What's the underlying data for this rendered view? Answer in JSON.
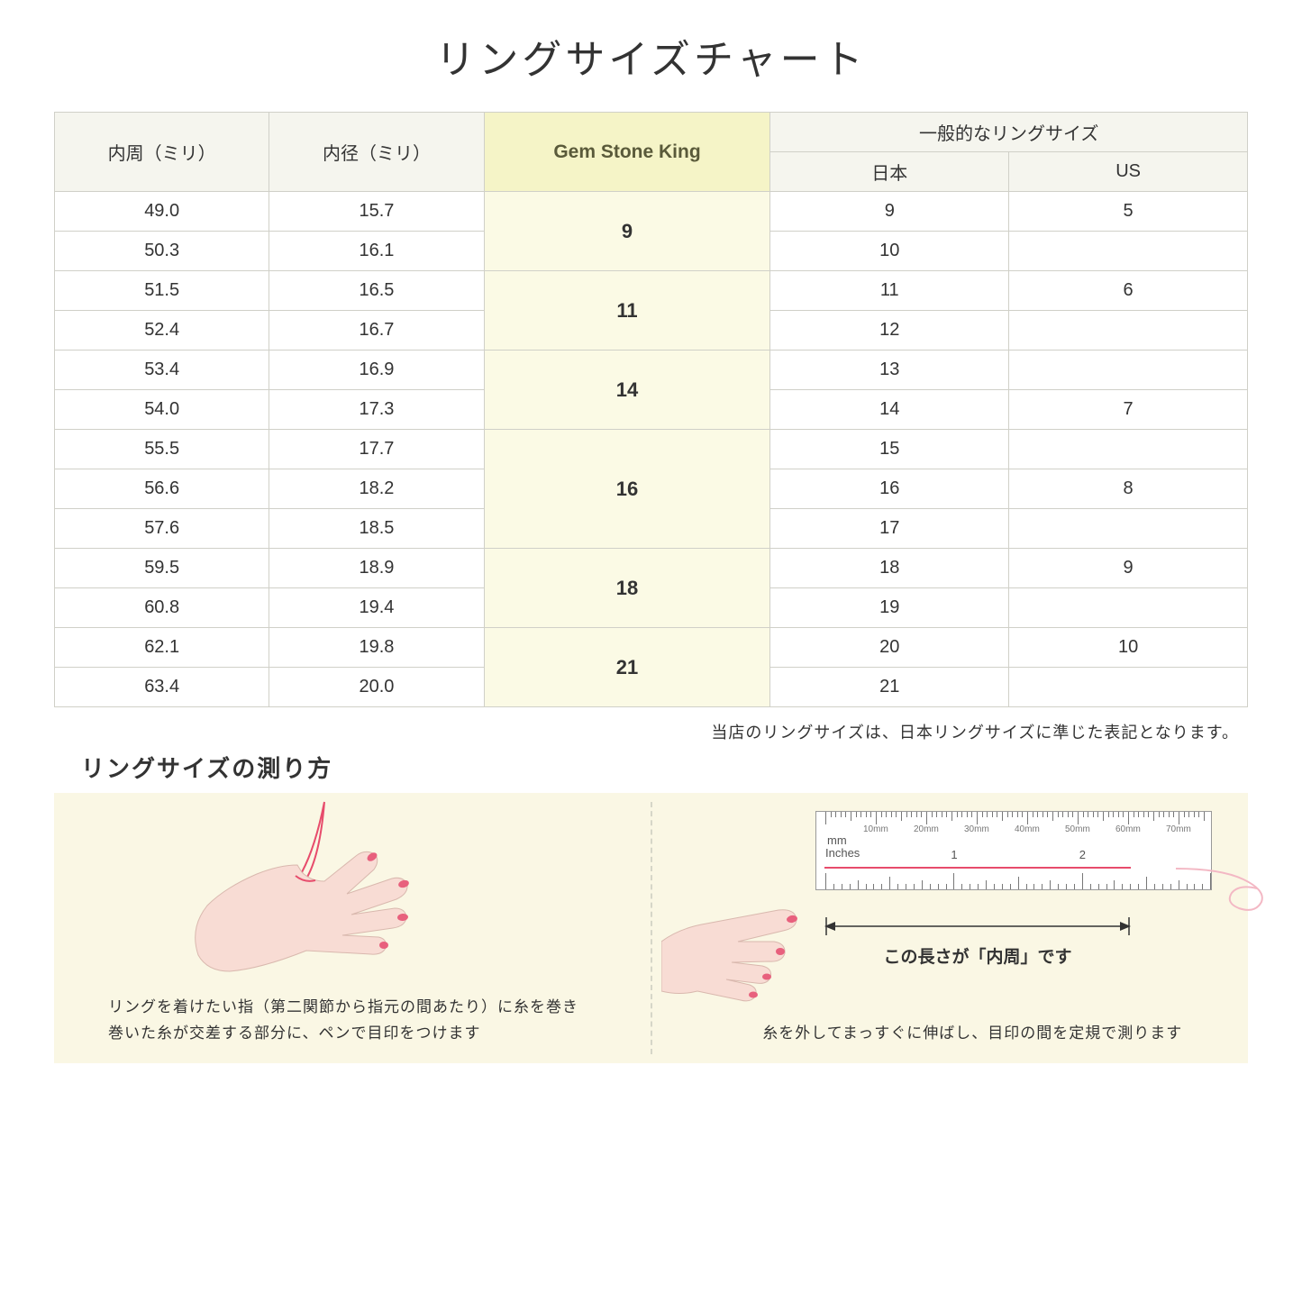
{
  "title": "リングサイズチャート",
  "table": {
    "headers": {
      "circumference": "内周（ミリ）",
      "diameter": "内径（ミリ）",
      "gsk": "Gem Stone King",
      "general": "一般的なリングサイズ",
      "japan": "日本",
      "us": "US"
    },
    "groups": [
      {
        "gsk": "9",
        "rows": [
          {
            "c": "49.0",
            "d": "15.7",
            "jp": "9",
            "us": "5"
          },
          {
            "c": "50.3",
            "d": "16.1",
            "jp": "10",
            "us": ""
          }
        ]
      },
      {
        "gsk": "11",
        "rows": [
          {
            "c": "51.5",
            "d": "16.5",
            "jp": "11",
            "us": "6"
          },
          {
            "c": "52.4",
            "d": "16.7",
            "jp": "12",
            "us": ""
          }
        ]
      },
      {
        "gsk": "14",
        "rows": [
          {
            "c": "53.4",
            "d": "16.9",
            "jp": "13",
            "us": ""
          },
          {
            "c": "54.0",
            "d": "17.3",
            "jp": "14",
            "us": "7"
          }
        ]
      },
      {
        "gsk": "16",
        "rows": [
          {
            "c": "55.5",
            "d": "17.7",
            "jp": "15",
            "us": ""
          },
          {
            "c": "56.6",
            "d": "18.2",
            "jp": "16",
            "us": "8"
          },
          {
            "c": "57.6",
            "d": "18.5",
            "jp": "17",
            "us": ""
          }
        ]
      },
      {
        "gsk": "18",
        "rows": [
          {
            "c": "59.5",
            "d": "18.9",
            "jp": "18",
            "us": "9"
          },
          {
            "c": "60.8",
            "d": "19.4",
            "jp": "19",
            "us": ""
          }
        ]
      },
      {
        "gsk": "21",
        "rows": [
          {
            "c": "62.1",
            "d": "19.8",
            "jp": "20",
            "us": "10"
          },
          {
            "c": "63.4",
            "d": "20.0",
            "jp": "21",
            "us": ""
          }
        ]
      }
    ]
  },
  "note": "当店のリングサイズは、日本リングサイズに準じた表記となります。",
  "howto": {
    "title": "リングサイズの測り方",
    "left_caption": "リングを着けたい指（第二関節から指元の間あたり）に糸を巻き\n巻いた糸が交差する部分に、ペンで目印をつけます",
    "right_caption": "糸を外してまっすぐに伸ばし、目印の間を定規で測ります",
    "ruler": {
      "mm_marks": [
        "10mm",
        "20mm",
        "30mm",
        "40mm",
        "50mm",
        "60mm",
        "70mm"
      ],
      "mm_label": "mm",
      "inch_label": "Inches",
      "inch_marks": [
        "1",
        "2"
      ]
    },
    "dim_label": "この長さが「内周」です"
  },
  "style": {
    "hand_fill": "#f8dcd4",
    "hand_stroke": "#c99",
    "nail_fill": "#e8607d",
    "thread": "#e74c6c"
  }
}
